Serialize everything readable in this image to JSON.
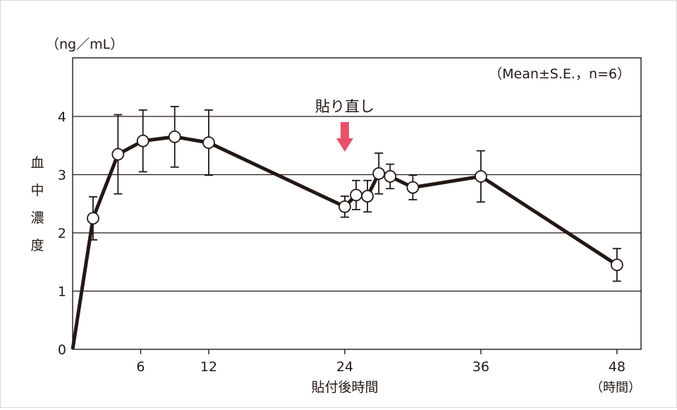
{
  "chart_data": {
    "type": "line",
    "unit_label": "（ng／mL）",
    "stats_note": "（Mean±S.E.，n=6）",
    "ylabel_chars": [
      "血",
      "中",
      "濃",
      "度"
    ],
    "xlabel": "貼付後時間",
    "x_unit": "（時間）",
    "annotation": {
      "text": "貼り直し",
      "x": 24,
      "color": "#e8506a"
    },
    "xlim": [
      0,
      50
    ],
    "ylim": [
      0,
      5
    ],
    "x_ticks": [
      6,
      12,
      24,
      36,
      48
    ],
    "x_tick_labels": [
      "6",
      "12",
      "24",
      "36",
      "48"
    ],
    "y_ticks": [
      0,
      1,
      2,
      3,
      4
    ],
    "y_tick_labels": [
      "0",
      "1",
      "2",
      "3",
      "4"
    ],
    "grid_y": [
      1,
      2,
      3,
      4
    ],
    "x": [
      0,
      1.8,
      4,
      6.2,
      9,
      12,
      24,
      25,
      26,
      27,
      28,
      30,
      36,
      48
    ],
    "y": [
      0,
      2.25,
      3.35,
      3.58,
      3.65,
      3.55,
      2.45,
      2.65,
      2.63,
      3.02,
      2.97,
      2.78,
      2.97,
      1.45
    ],
    "err": [
      null,
      0.37,
      0.68,
      0.53,
      0.52,
      0.56,
      0.18,
      0.25,
      0.27,
      0.35,
      0.21,
      0.21,
      0.44,
      0.28
    ],
    "line_color": "#231815",
    "marker_fill": "#ffffff"
  }
}
